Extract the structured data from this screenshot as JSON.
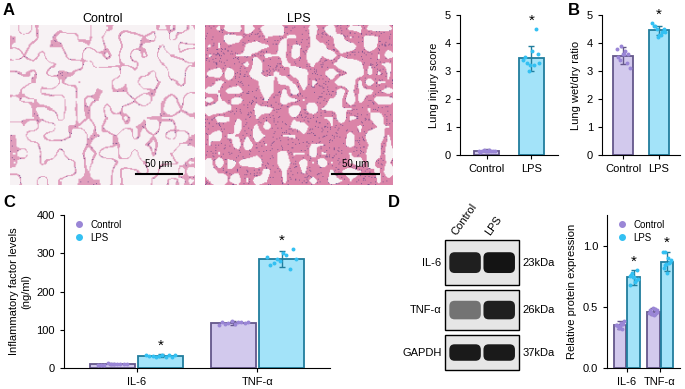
{
  "panel_labels": [
    "A",
    "B",
    "C",
    "D"
  ],
  "images": [
    {
      "title": "Control",
      "scale_bar": "50 μm"
    },
    {
      "title": "LPS",
      "scale_bar": "50 μm"
    }
  ],
  "blot": {
    "lanes": [
      "Control",
      "LPS"
    ],
    "rows": [
      {
        "protein": "IL-6",
        "size": "23kDa"
      },
      {
        "protein": "TNF-α",
        "size": "26kDa"
      },
      {
        "protein": "GAPDH",
        "size": "37kDa"
      }
    ]
  },
  "chart_data": [
    {
      "type": "bar",
      "y_label": "Lung injury score",
      "categories": [
        "Control",
        "LPS"
      ],
      "values": [
        0.15,
        3.45
      ],
      "errors": [
        0.05,
        0.45
      ],
      "points": [
        [
          0.12,
          0.15,
          0.18,
          0.14,
          0.16,
          0.13,
          0.17,
          0.15,
          0.14,
          0.16
        ],
        [
          3.0,
          3.2,
          3.3,
          3.4,
          3.5,
          3.6,
          3.3,
          3.7,
          4.5,
          3.2
        ]
      ],
      "colors": [
        "#9a86d6",
        "#33c0f2"
      ],
      "ylim": [
        0,
        5
      ],
      "yticks": [
        0,
        1,
        2,
        3,
        4,
        5
      ],
      "annotations": [
        {
          "text": "*",
          "category": "LPS"
        }
      ]
    },
    {
      "type": "bar",
      "y_label": "Lung wet/dry ratio",
      "categories": [
        "Control",
        "LPS"
      ],
      "values": [
        3.55,
        4.45
      ],
      "errors": [
        0.3,
        0.15
      ],
      "points": [
        [
          3.1,
          3.3,
          3.5,
          3.6,
          3.7,
          3.8,
          3.9,
          3.4,
          3.6,
          3.6
        ],
        [
          4.2,
          4.3,
          4.4,
          4.5,
          4.6,
          4.7,
          4.4,
          4.5,
          4.3,
          4.6
        ]
      ],
      "colors": [
        "#9a86d6",
        "#33c0f2"
      ],
      "ylim": [
        0,
        5
      ],
      "yticks": [
        0,
        1,
        2,
        3,
        4,
        5
      ],
      "annotations": [
        {
          "text": "*",
          "category": "LPS"
        }
      ]
    },
    {
      "type": "bar",
      "y_label": "Inflammatory factor levels\n(ng/ml)",
      "categories": [
        "IL-6",
        "TNF-α"
      ],
      "series": [
        {
          "name": "Control",
          "color": "#9a86d6",
          "values": [
            10,
            118
          ],
          "errors": [
            2,
            5
          ],
          "points": [
            [
              8,
              9,
              10,
              11,
              12,
              10,
              9,
              11,
              10,
              10
            ],
            [
              112,
              115,
              118,
              120,
              122,
              116,
              119,
              121,
              117,
              120
            ]
          ]
        },
        {
          "name": "LPS",
          "color": "#33c0f2",
          "values": [
            32,
            285
          ],
          "errors": [
            4,
            22
          ],
          "points": [
            [
              28,
              30,
              31,
              32,
              33,
              34,
              35,
              30,
              32,
              35
            ],
            [
              260,
              270,
              280,
              290,
              300,
              310,
              275,
              285,
              295,
              285
            ]
          ]
        }
      ],
      "ylim": [
        0,
        400
      ],
      "yticks": [
        0,
        100,
        200,
        300,
        400
      ],
      "legend": "upper left",
      "annotations": [
        {
          "text": "*",
          "category": "IL-6",
          "series": "LPS"
        },
        {
          "text": "*",
          "category": "TNF-α",
          "series": "LPS"
        }
      ]
    },
    {
      "type": "bar",
      "y_label": "Relative protein expression",
      "categories": [
        "IL-6",
        "TNF-α"
      ],
      "series": [
        {
          "name": "Control",
          "color": "#9a86d6",
          "values": [
            0.35,
            0.46
          ],
          "errors": [
            0.03,
            0.03
          ],
          "points": [
            [
              0.32,
              0.34,
              0.35,
              0.36,
              0.38,
              0.33,
              0.35,
              0.37,
              0.34,
              0.36
            ],
            [
              0.43,
              0.45,
              0.46,
              0.47,
              0.49,
              0.44,
              0.46,
              0.48,
              0.45,
              0.47
            ]
          ]
        },
        {
          "name": "LPS",
          "color": "#33c0f2",
          "values": [
            0.74,
            0.87
          ],
          "errors": [
            0.06,
            0.08
          ],
          "points": [
            [
              0.68,
              0.7,
              0.72,
              0.74,
              0.76,
              0.78,
              0.8,
              0.73,
              0.75,
              0.74
            ],
            [
              0.78,
              0.82,
              0.85,
              0.87,
              0.9,
              0.95,
              0.88,
              0.86,
              0.84,
              0.95
            ]
          ]
        }
      ],
      "ylim": [
        0,
        1.25
      ],
      "yticks": [
        {
          "value": 0,
          "label": "0.0"
        },
        0.5,
        {
          "value": 1,
          "label": "1.0"
        }
      ],
      "legend": "upper left",
      "annotations": [
        {
          "text": "*",
          "category": "IL-6",
          "series": "LPS"
        },
        {
          "text": "*",
          "category": "TNF-α",
          "series": "LPS"
        }
      ]
    }
  ]
}
